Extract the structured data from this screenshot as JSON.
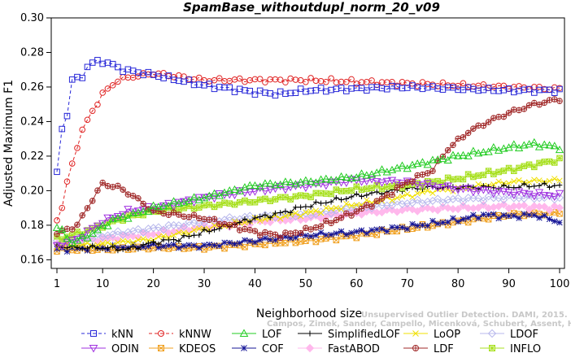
{
  "chart_data": {
    "type": "line",
    "title": "SpamBase_withoutdupl_norm_20_v09",
    "xlabel": "Neighborhood size",
    "ylabel": "Adjusted Maximum F1",
    "xlim": [
      1,
      100
    ],
    "ylim": [
      0.155,
      0.3
    ],
    "xticks": [
      1,
      10,
      20,
      30,
      40,
      50,
      60,
      70,
      80,
      90,
      100
    ],
    "yticks": [
      0.16,
      0.18,
      0.2,
      0.22,
      0.24,
      0.26,
      0.28,
      0.3
    ],
    "ytick_labels": [
      "0.16",
      "0.18",
      "0.20",
      "0.22",
      "0.24",
      "0.26",
      "0.28",
      "0.30"
    ],
    "grid": false,
    "legend_position": "bottom",
    "credit": {
      "line1": "Unsupervised Outlier Detection. DAMI, 2015.",
      "line2": "Campos, Zimek, Sander, Campello, Micenková, Schubert, Assent, Houle"
    },
    "series": [
      {
        "name": "kNN",
        "color": "#2828d8",
        "marker": "square",
        "dashed": true,
        "knots": [
          [
            1,
            0.21
          ],
          [
            2,
            0.236
          ],
          [
            3,
            0.244
          ],
          [
            4,
            0.264
          ],
          [
            6,
            0.266
          ],
          [
            7,
            0.272
          ],
          [
            9,
            0.275
          ],
          [
            11,
            0.274
          ],
          [
            14,
            0.27
          ],
          [
            20,
            0.267
          ],
          [
            25,
            0.264
          ],
          [
            30,
            0.261
          ],
          [
            40,
            0.257
          ],
          [
            45,
            0.256
          ],
          [
            50,
            0.258
          ],
          [
            60,
            0.259
          ],
          [
            70,
            0.26
          ],
          [
            80,
            0.259
          ],
          [
            90,
            0.258
          ],
          [
            100,
            0.258
          ]
        ]
      },
      {
        "name": "kNNW",
        "color": "#e02424",
        "marker": "circle",
        "dashed": true,
        "knots": [
          [
            1,
            0.184
          ],
          [
            2,
            0.19
          ],
          [
            3,
            0.205
          ],
          [
            4,
            0.215
          ],
          [
            5,
            0.226
          ],
          [
            6,
            0.235
          ],
          [
            8,
            0.246
          ],
          [
            10,
            0.256
          ],
          [
            13,
            0.264
          ],
          [
            16,
            0.266
          ],
          [
            20,
            0.268
          ],
          [
            25,
            0.266
          ],
          [
            30,
            0.264
          ],
          [
            40,
            0.264
          ],
          [
            50,
            0.264
          ],
          [
            60,
            0.263
          ],
          [
            70,
            0.262
          ],
          [
            80,
            0.261
          ],
          [
            90,
            0.26
          ],
          [
            100,
            0.259
          ]
        ]
      },
      {
        "name": "LOF",
        "color": "#22cc22",
        "marker": "triangle",
        "dashed": false,
        "knots": [
          [
            1,
            0.179
          ],
          [
            4,
            0.17
          ],
          [
            8,
            0.175
          ],
          [
            12,
            0.183
          ],
          [
            16,
            0.186
          ],
          [
            20,
            0.19
          ],
          [
            30,
            0.196
          ],
          [
            40,
            0.203
          ],
          [
            50,
            0.205
          ],
          [
            60,
            0.208
          ],
          [
            70,
            0.214
          ],
          [
            75,
            0.217
          ],
          [
            80,
            0.22
          ],
          [
            90,
            0.225
          ],
          [
            95,
            0.227
          ],
          [
            100,
            0.225
          ]
        ]
      },
      {
        "name": "SimplifiedLOF",
        "color": "#000000",
        "marker": "plus",
        "dashed": false,
        "knots": [
          [
            1,
            0.168
          ],
          [
            5,
            0.167
          ],
          [
            10,
            0.167
          ],
          [
            15,
            0.166
          ],
          [
            20,
            0.17
          ],
          [
            25,
            0.172
          ],
          [
            30,
            0.176
          ],
          [
            35,
            0.18
          ],
          [
            40,
            0.184
          ],
          [
            45,
            0.187
          ],
          [
            50,
            0.191
          ],
          [
            55,
            0.194
          ],
          [
            60,
            0.197
          ],
          [
            65,
            0.199
          ],
          [
            70,
            0.201
          ],
          [
            75,
            0.202
          ],
          [
            80,
            0.202
          ],
          [
            85,
            0.202
          ],
          [
            90,
            0.202
          ],
          [
            95,
            0.203
          ],
          [
            100,
            0.203
          ]
        ]
      },
      {
        "name": "LoOP",
        "color": "#f0e000",
        "marker": "cross",
        "dashed": false,
        "knots": [
          [
            1,
            0.168
          ],
          [
            10,
            0.169
          ],
          [
            20,
            0.172
          ],
          [
            30,
            0.178
          ],
          [
            40,
            0.183
          ],
          [
            50,
            0.187
          ],
          [
            60,
            0.192
          ],
          [
            70,
            0.197
          ],
          [
            75,
            0.2
          ],
          [
            80,
            0.201
          ],
          [
            90,
            0.205
          ],
          [
            100,
            0.206
          ]
        ]
      },
      {
        "name": "LDOF",
        "color": "#b8b8ec",
        "marker": "diamond",
        "dashed": false,
        "knots": [
          [
            1,
            0.17
          ],
          [
            5,
            0.171
          ],
          [
            10,
            0.174
          ],
          [
            20,
            0.178
          ],
          [
            30,
            0.182
          ],
          [
            40,
            0.185
          ],
          [
            50,
            0.186
          ],
          [
            60,
            0.19
          ],
          [
            70,
            0.193
          ],
          [
            80,
            0.195
          ],
          [
            90,
            0.196
          ],
          [
            100,
            0.196
          ]
        ]
      },
      {
        "name": "ODIN",
        "color": "#a030e0",
        "marker": "triangle-down",
        "dashed": false,
        "knots": [
          [
            1,
            0.168
          ],
          [
            5,
            0.172
          ],
          [
            10,
            0.182
          ],
          [
            15,
            0.188
          ],
          [
            20,
            0.19
          ],
          [
            30,
            0.196
          ],
          [
            40,
            0.2
          ],
          [
            50,
            0.203
          ],
          [
            60,
            0.206
          ],
          [
            70,
            0.205
          ],
          [
            80,
            0.201
          ],
          [
            90,
            0.199
          ],
          [
            100,
            0.197
          ]
        ]
      },
      {
        "name": "KDEOS",
        "color": "#f0a020",
        "marker": "square-x",
        "dashed": false,
        "knots": [
          [
            1,
            0.166
          ],
          [
            10,
            0.166
          ],
          [
            20,
            0.167
          ],
          [
            30,
            0.167
          ],
          [
            40,
            0.169
          ],
          [
            50,
            0.171
          ],
          [
            60,
            0.174
          ],
          [
            70,
            0.178
          ],
          [
            80,
            0.182
          ],
          [
            90,
            0.186
          ],
          [
            100,
            0.187
          ]
        ]
      },
      {
        "name": "COF",
        "color": "#141496",
        "marker": "star",
        "dashed": false,
        "knots": [
          [
            1,
            0.166
          ],
          [
            10,
            0.167
          ],
          [
            20,
            0.168
          ],
          [
            30,
            0.168
          ],
          [
            40,
            0.171
          ],
          [
            50,
            0.174
          ],
          [
            60,
            0.176
          ],
          [
            70,
            0.179
          ],
          [
            80,
            0.183
          ],
          [
            85,
            0.186
          ],
          [
            90,
            0.185
          ],
          [
            95,
            0.186
          ],
          [
            100,
            0.182
          ]
        ]
      },
      {
        "name": "FastABOD",
        "color": "#ffb8ec",
        "marker": "diamond-filled",
        "dashed": false,
        "knots": [
          [
            1,
            0.17
          ],
          [
            10,
            0.172
          ],
          [
            20,
            0.175
          ],
          [
            30,
            0.179
          ],
          [
            40,
            0.182
          ],
          [
            50,
            0.184
          ],
          [
            60,
            0.187
          ],
          [
            70,
            0.189
          ],
          [
            80,
            0.19
          ],
          [
            90,
            0.191
          ],
          [
            100,
            0.19
          ]
        ]
      },
      {
        "name": "LDF",
        "color": "#a02828",
        "marker": "circle-plus",
        "dashed": false,
        "knots": [
          [
            1,
            0.175
          ],
          [
            5,
            0.18
          ],
          [
            8,
            0.195
          ],
          [
            10,
            0.204
          ],
          [
            13,
            0.202
          ],
          [
            16,
            0.197
          ],
          [
            20,
            0.188
          ],
          [
            25,
            0.186
          ],
          [
            30,
            0.184
          ],
          [
            35,
            0.18
          ],
          [
            40,
            0.176
          ],
          [
            45,
            0.174
          ],
          [
            50,
            0.177
          ],
          [
            55,
            0.182
          ],
          [
            60,
            0.188
          ],
          [
            65,
            0.195
          ],
          [
            70,
            0.205
          ],
          [
            75,
            0.212
          ],
          [
            78,
            0.224
          ],
          [
            82,
            0.234
          ],
          [
            86,
            0.24
          ],
          [
            90,
            0.245
          ],
          [
            95,
            0.25
          ],
          [
            100,
            0.253
          ]
        ]
      },
      {
        "name": "INFLO",
        "color": "#a8e020",
        "marker": "square-star",
        "dashed": false,
        "knots": [
          [
            1,
            0.172
          ],
          [
            5,
            0.175
          ],
          [
            10,
            0.18
          ],
          [
            15,
            0.185
          ],
          [
            20,
            0.188
          ],
          [
            30,
            0.191
          ],
          [
            40,
            0.194
          ],
          [
            50,
            0.197
          ],
          [
            60,
            0.201
          ],
          [
            70,
            0.203
          ],
          [
            80,
            0.207
          ],
          [
            90,
            0.212
          ],
          [
            100,
            0.218
          ]
        ]
      }
    ]
  }
}
